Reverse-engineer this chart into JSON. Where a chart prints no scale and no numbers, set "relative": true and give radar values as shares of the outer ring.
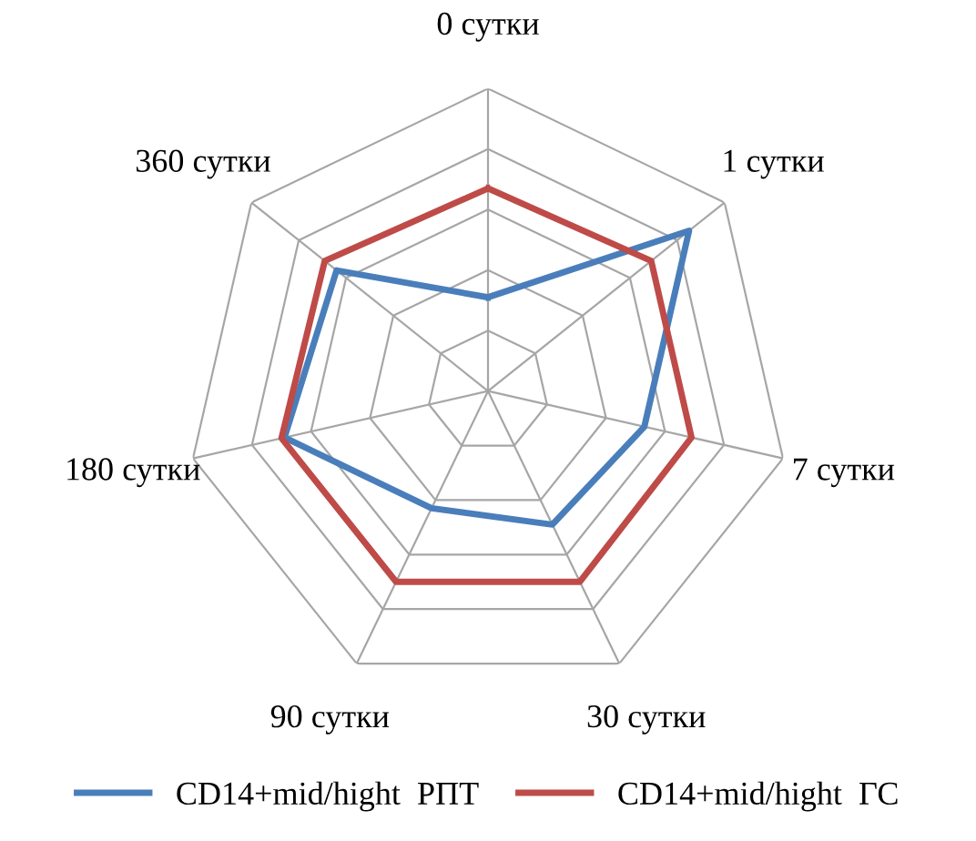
{
  "chart_data": {
    "type": "radar",
    "relative": true,
    "categories": [
      "0 сутки",
      "1 сутки",
      "7 сутки",
      "30 сутки",
      "90 сутки",
      "180 сутки",
      "360 сутки"
    ],
    "series": [
      {
        "name": "CD14+mid/hight  РПТ",
        "color": "#4a7ebb",
        "values": [
          0.31,
          0.85,
          0.53,
          0.49,
          0.43,
          0.69,
          0.64
        ]
      },
      {
        "name": "CD14+mid/hight  ГС",
        "color": "#be4b48",
        "values": [
          0.67,
          0.69,
          0.69,
          0.7,
          0.7,
          0.7,
          0.69
        ]
      }
    ],
    "grid": true,
    "legend": "bottom"
  }
}
